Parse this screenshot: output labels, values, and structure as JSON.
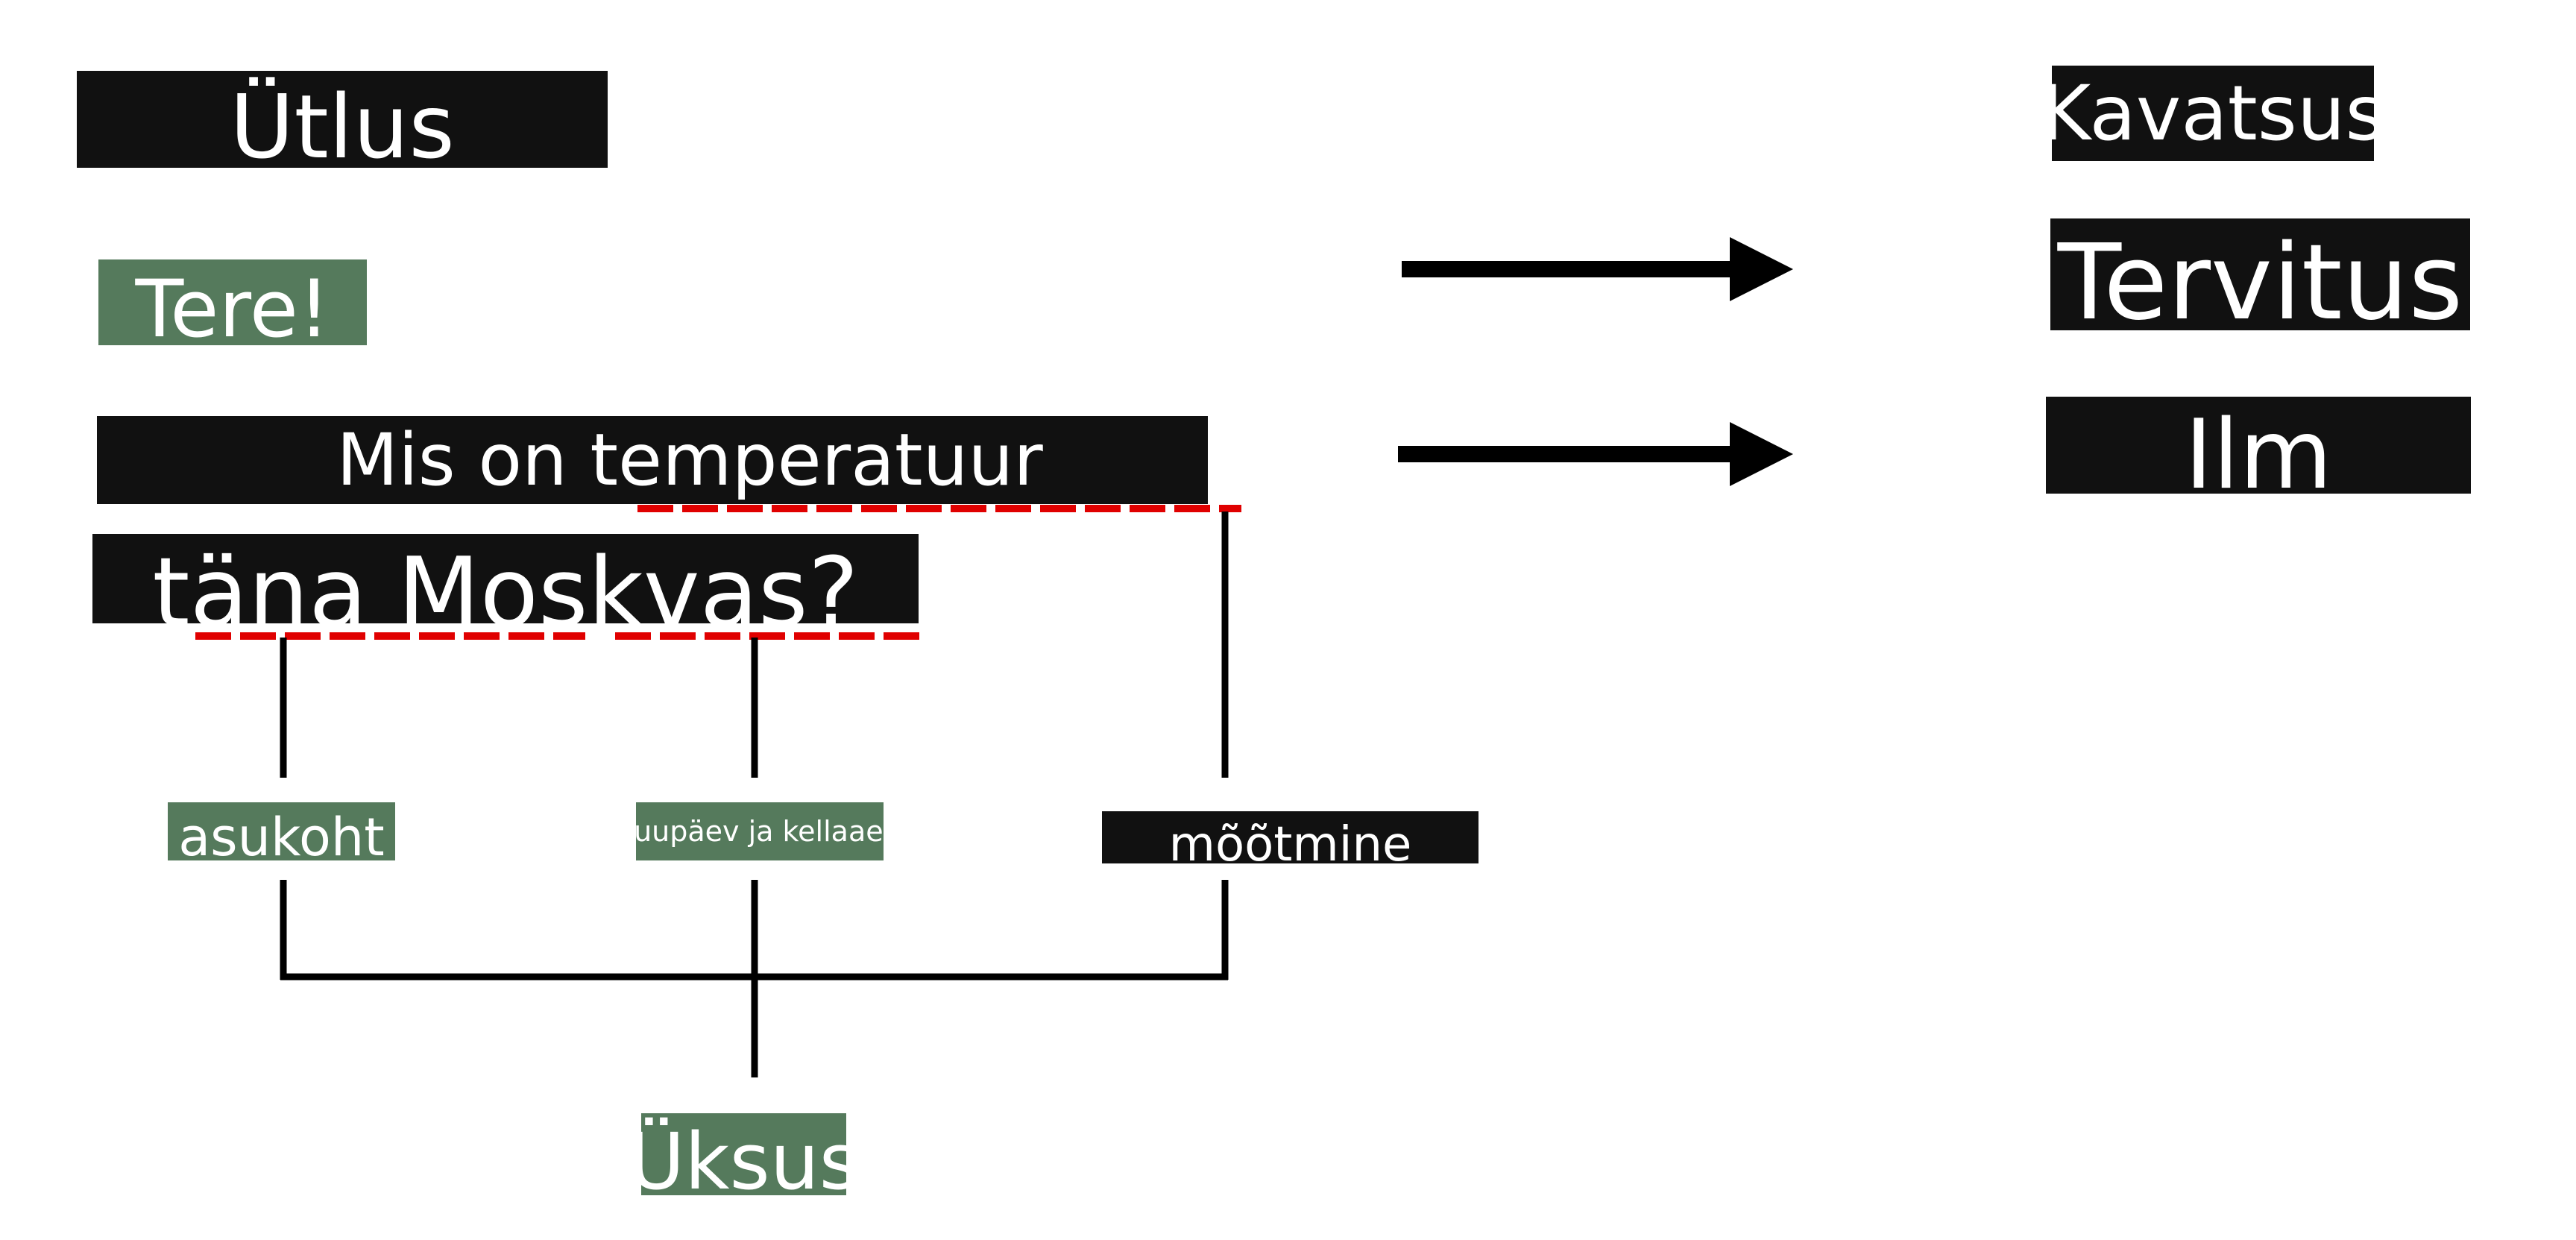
{
  "utterance_heading": "Ütlus",
  "intent_heading": "Kavatsus",
  "utterances": {
    "greeting": "Tere!",
    "question_line1": "Mis on temperatuur",
    "question_line2": "täna Moskvas?"
  },
  "intents": {
    "greeting": "Tervitus",
    "weather": "Ilm"
  },
  "entities": {
    "location": "asukoht",
    "datetime": "kuupäev ja kellaaeg",
    "measurement": "mõõtmine"
  },
  "entity_heading": "Üksus",
  "colors": {
    "dark_label": "#111111",
    "green_label": "#557a5c",
    "annotation_dash": "#e00000",
    "line": "#000000"
  }
}
